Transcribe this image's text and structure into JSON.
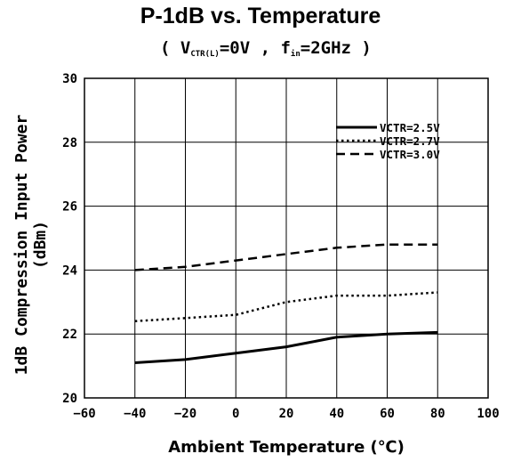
{
  "chart_data": {
    "type": "line",
    "title": "P-1dB vs. Temperature",
    "subtitle": {
      "open": "( V",
      "vctr_sub": "CTR(L)",
      "mid": "=0V , f",
      "fin_sub": "in",
      "close": "=2GHz )"
    },
    "xlabel": "Ambient Temperature (℃)",
    "ylabel": "1dB Compression Input Power",
    "ylabel_unit": "(dBm)",
    "xlim": [
      -60,
      100
    ],
    "ylim": [
      20,
      30
    ],
    "xticks": [
      -60,
      -40,
      -20,
      0,
      20,
      40,
      60,
      80,
      100
    ],
    "yticks": [
      20,
      22,
      24,
      26,
      28,
      30
    ],
    "grid": true,
    "legend_position": "top-right",
    "series": [
      {
        "name": "VCTR=2.5V",
        "style": "solid",
        "x": [
          -40,
          -20,
          0,
          20,
          40,
          60,
          80
        ],
        "y": [
          21.1,
          21.2,
          21.4,
          21.6,
          21.9,
          22.0,
          22.05
        ]
      },
      {
        "name": "VCTR=2.7V",
        "style": "dotted",
        "x": [
          -40,
          -20,
          0,
          20,
          40,
          60,
          80
        ],
        "y": [
          22.4,
          22.5,
          22.6,
          23.0,
          23.2,
          23.2,
          23.3
        ]
      },
      {
        "name": "VCTR=3.0V",
        "style": "dashed",
        "x": [
          -40,
          -20,
          0,
          20,
          40,
          60,
          80
        ],
        "y": [
          24.0,
          24.1,
          24.3,
          24.5,
          24.7,
          24.8,
          24.8
        ]
      }
    ]
  }
}
